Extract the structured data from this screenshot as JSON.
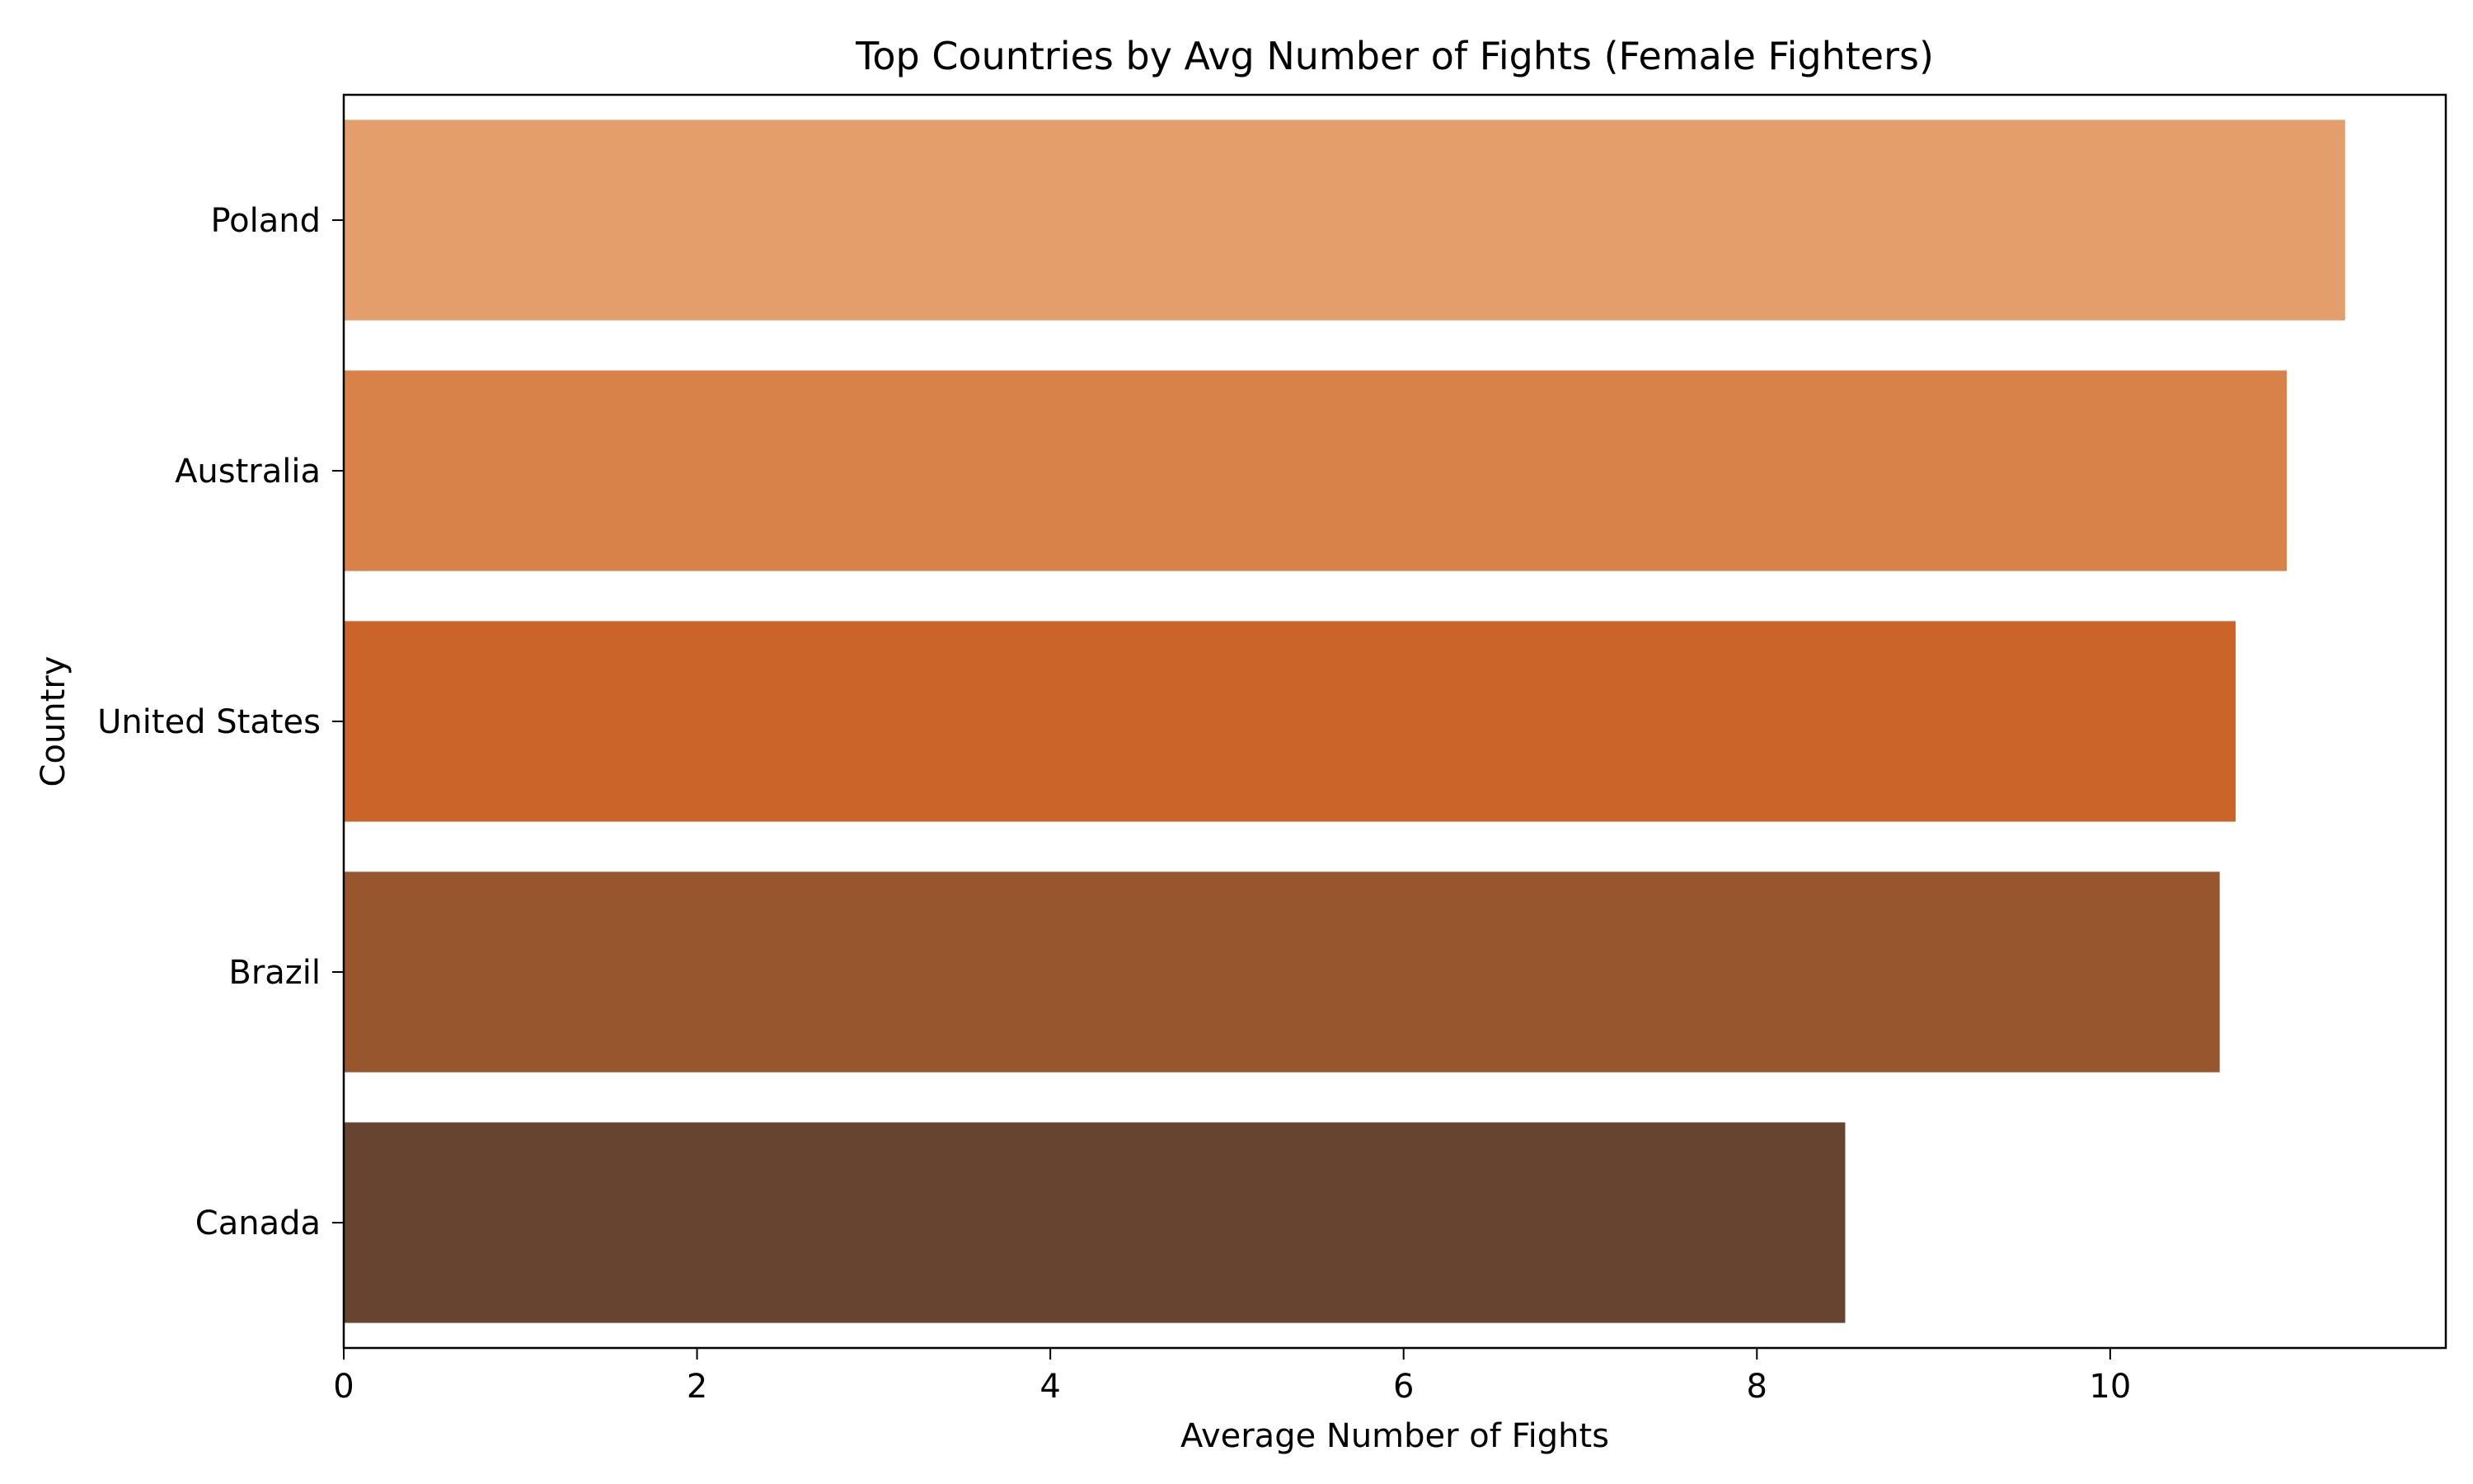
{
  "chart_data": {
    "type": "bar",
    "orientation": "horizontal",
    "title": "Top Countries by Avg Number of Fights (Female Fighters)",
    "xlabel": "Average Number of Fights",
    "ylabel": "Country",
    "categories": [
      "Poland",
      "Australia",
      "United States",
      "Brazil",
      "Canada"
    ],
    "values": [
      11.33,
      11.0,
      10.71,
      10.62,
      8.5
    ],
    "colors": [
      "#e39e6b",
      "#d8824a",
      "#cb6428",
      "#98562f",
      "#664430"
    ],
    "xlim": [
      0,
      11.9
    ],
    "xticks": [
      0,
      2,
      4,
      6,
      8,
      10
    ],
    "grid": false
  }
}
